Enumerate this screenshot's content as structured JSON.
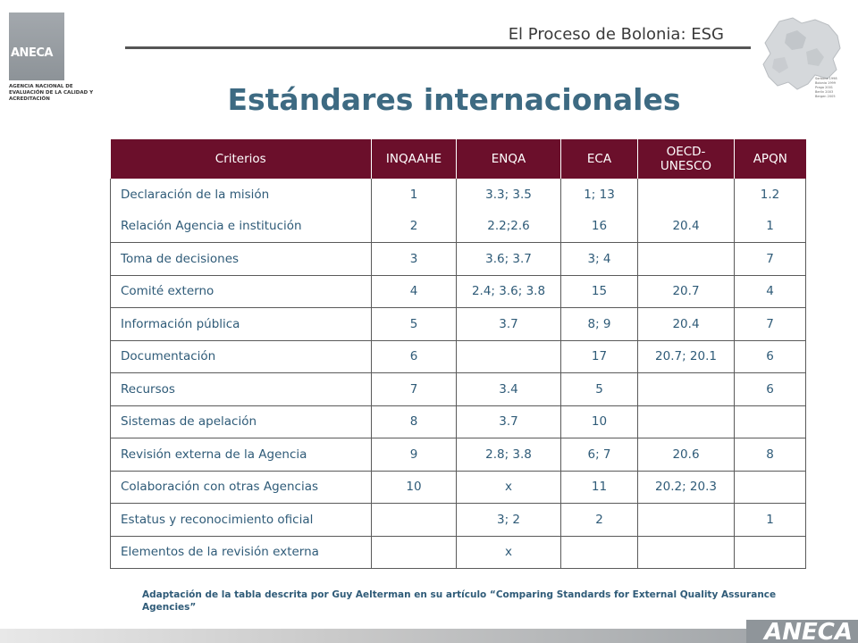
{
  "header": {
    "logo_text": "ANECA",
    "logo_subtitle": "AGENCIA NACIONAL DE EVALUACIÓN DE LA CALIDAD Y ACREDITACIÓN",
    "slide_title": "El Proceso de Bolonia: ESG",
    "map_legend": [
      "Sorbona 1998",
      "Bolonia 1999",
      "Praga 2001",
      "Berlín 2003",
      "Bergen 2005"
    ]
  },
  "title": "Estándares internacionales",
  "table": {
    "columns": [
      "Criterios",
      "INQAAHE",
      "ENQA",
      "ECA",
      "OECD-UNESCO",
      "APQN"
    ],
    "rows": [
      {
        "criterio": "Declaración de la misión",
        "inqaahe": "1",
        "enqa": "3.3; 3.5",
        "eca": "1; 13",
        "oecd": "",
        "apqn": "1.2"
      },
      {
        "criterio": "Relación Agencia e institución",
        "inqaahe": "2",
        "enqa": "2.2;2.6",
        "eca": "16",
        "oecd": "20.4",
        "apqn": "1"
      },
      {
        "criterio": "Toma de decisiones",
        "inqaahe": "3",
        "enqa": "3.6; 3.7",
        "eca": "3; 4",
        "oecd": "",
        "apqn": "7"
      },
      {
        "criterio": "Comité externo",
        "inqaahe": "4",
        "enqa": "2.4; 3.6; 3.8",
        "eca": "15",
        "oecd": "20.7",
        "apqn": "4"
      },
      {
        "criterio": "Información pública",
        "inqaahe": "5",
        "enqa": "3.7",
        "eca": "8; 9",
        "oecd": "20.4",
        "apqn": "7"
      },
      {
        "criterio": "Documentación",
        "inqaahe": "6",
        "enqa": "",
        "eca": "17",
        "oecd": "20.7; 20.1",
        "apqn": "6"
      },
      {
        "criterio": "Recursos",
        "inqaahe": "7",
        "enqa": "3.4",
        "eca": "5",
        "oecd": "",
        "apqn": "6"
      },
      {
        "criterio": "Sistemas de apelación",
        "inqaahe": "8",
        "enqa": "3.7",
        "eca": "10",
        "oecd": "",
        "apqn": ""
      },
      {
        "criterio": "Revisión externa de la Agencia",
        "inqaahe": "9",
        "enqa": "2.8; 3.8",
        "eca": "6; 7",
        "oecd": "20.6",
        "apqn": "8"
      },
      {
        "criterio": "Colaboración con otras Agencias",
        "inqaahe": "10",
        "enqa": "x",
        "eca": "11",
        "oecd": "20.2; 20.3",
        "apqn": ""
      },
      {
        "criterio": "Estatus y reconocimiento oficial",
        "inqaahe": "",
        "enqa": "3; 2",
        "eca": "2",
        "oecd": "",
        "apqn": "1"
      },
      {
        "criterio": "Elementos de la revisión externa",
        "inqaahe": "",
        "enqa": "x",
        "eca": "",
        "oecd": "",
        "apqn": ""
      }
    ]
  },
  "footnote": "Adaptación de la tabla descrita por Guy Aelterman en su artículo “Comparing Standards for External Quality Assurance Agencies”",
  "footer": {
    "brand": "ANECA"
  },
  "colors": {
    "header_bg": "#6b0f2b",
    "text_blue": "#2f5b78",
    "title_blue": "#3d6a82"
  }
}
